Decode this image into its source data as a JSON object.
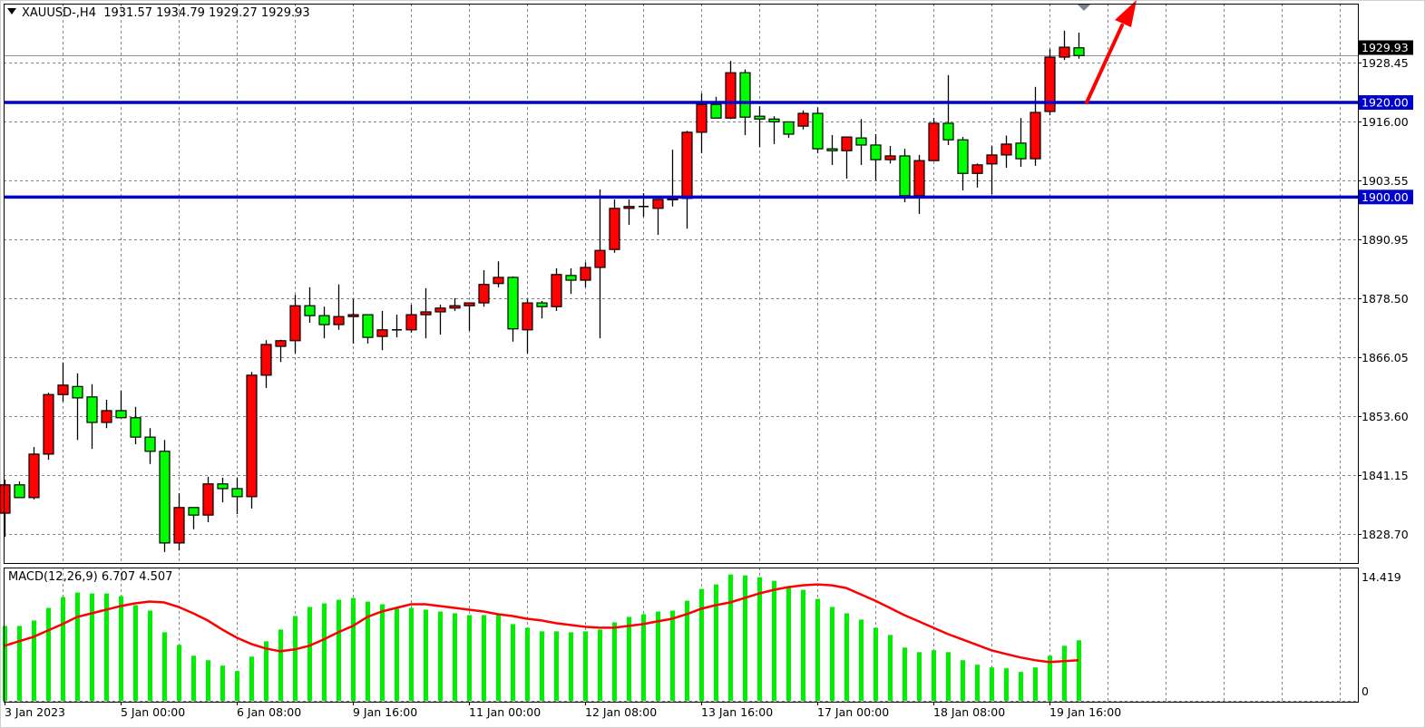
{
  "header": {
    "symbol": "XAUUSD-,H4",
    "ohlc": "1931.57 1934.79 1929.27 1929.93"
  },
  "macd_header": {
    "label": "MACD(12,26,9)",
    "values": "6.707 4.507"
  },
  "colors": {
    "bull_candle": "#ff0000",
    "bear_candle": "#00ff00",
    "level_line": "#0000cc",
    "histogram": "#00ee00",
    "signal_line": "#ff0000",
    "arrow": "#ff0000",
    "bid_label_bg": "#000000"
  },
  "chart_data": [
    {
      "type": "candlestick",
      "ylim": [
        1822,
        1938
      ],
      "grid": true,
      "y_ticks": [
        "1828.70",
        "1841.15",
        "1853.60",
        "1866.05",
        "1878.50",
        "1890.95",
        "1903.55",
        "1916.00",
        "1928.45"
      ],
      "x_tick_labels": [
        "3 Jan 2023",
        "5 Jan 00:00",
        "6 Jan 08:00",
        "9 Jan 16:00",
        "11 Jan 00:00",
        "12 Jan 08:00",
        "13 Jan 16:00",
        "17 Jan 00:00",
        "18 Jan 08:00",
        "19 Jan 16:00"
      ],
      "current_price": "1929.93",
      "horizontal_levels": [
        {
          "value": 1920.0,
          "label": "1920.00"
        },
        {
          "value": 1900.0,
          "label": "1900.00"
        }
      ],
      "annotation": "red up arrow",
      "ohlc_columns": [
        "open",
        "high",
        "low",
        "close"
      ],
      "candles": [
        [
          1833.1,
          1840.2,
          1828.1,
          1839.1
        ],
        [
          1839.1,
          1839.8,
          1836.4,
          1836.4
        ],
        [
          1836.4,
          1847.1,
          1836.0,
          1845.6
        ],
        [
          1845.6,
          1858.6,
          1844.4,
          1858.2
        ],
        [
          1858.2,
          1865.0,
          1856.7,
          1860.2
        ],
        [
          1859.9,
          1862.7,
          1848.6,
          1857.5
        ],
        [
          1857.7,
          1860.4,
          1846.7,
          1852.3
        ],
        [
          1852.3,
          1857.1,
          1851.1,
          1854.8
        ],
        [
          1854.8,
          1859.0,
          1853.3,
          1853.3
        ],
        [
          1853.3,
          1855.6,
          1847.7,
          1849.2
        ],
        [
          1849.2,
          1851.1,
          1843.5,
          1846.2
        ],
        [
          1846.2,
          1848.6,
          1824.9,
          1826.8
        ],
        [
          1826.8,
          1837.3,
          1825.2,
          1834.3
        ],
        [
          1834.3,
          1834.3,
          1829.7,
          1832.7
        ],
        [
          1832.7,
          1840.8,
          1831.2,
          1839.3
        ],
        [
          1839.3,
          1840.6,
          1835.4,
          1838.3
        ],
        [
          1838.3,
          1840.6,
          1832.9,
          1836.6
        ],
        [
          1836.6,
          1863.0,
          1834.1,
          1862.3
        ],
        [
          1862.3,
          1869.7,
          1859.6,
          1868.8
        ],
        [
          1868.4,
          1869.8,
          1865.1,
          1869.6
        ],
        [
          1869.6,
          1879.3,
          1866.9,
          1877.0
        ],
        [
          1877.0,
          1880.9,
          1873.4,
          1874.9
        ],
        [
          1874.9,
          1876.8,
          1870.1,
          1873.0
        ],
        [
          1873.0,
          1881.5,
          1871.9,
          1874.7
        ],
        [
          1874.7,
          1878.4,
          1869.0,
          1875.1
        ],
        [
          1875.1,
          1875.1,
          1869.0,
          1870.3
        ],
        [
          1870.5,
          1875.9,
          1867.6,
          1871.9
        ],
        [
          1871.9,
          1875.1,
          1870.3,
          1871.9
        ],
        [
          1871.9,
          1877.2,
          1871.3,
          1875.1
        ],
        [
          1875.1,
          1880.7,
          1870.1,
          1875.7
        ],
        [
          1875.7,
          1877.2,
          1870.9,
          1876.5
        ],
        [
          1876.5,
          1878.6,
          1875.9,
          1877.0
        ],
        [
          1877.0,
          1877.6,
          1871.7,
          1877.6
        ],
        [
          1877.6,
          1884.5,
          1876.8,
          1881.5
        ],
        [
          1881.7,
          1886.4,
          1880.9,
          1883.0
        ],
        [
          1883.0,
          1883.2,
          1869.4,
          1872.1
        ],
        [
          1871.9,
          1878.4,
          1866.9,
          1877.6
        ],
        [
          1877.6,
          1878.0,
          1874.3,
          1876.8
        ],
        [
          1876.8,
          1884.9,
          1875.9,
          1883.6
        ],
        [
          1883.4,
          1884.9,
          1879.5,
          1882.4
        ],
        [
          1882.4,
          1886.2,
          1880.9,
          1885.1
        ],
        [
          1885.1,
          1901.6,
          1870.1,
          1888.7
        ],
        [
          1888.9,
          1899.5,
          1888.2,
          1897.6
        ],
        [
          1897.6,
          1899.5,
          1894.1,
          1898.0
        ],
        [
          1898.0,
          1900.8,
          1895.8,
          1898.0
        ],
        [
          1897.6,
          1899.5,
          1892.0,
          1899.5
        ],
        [
          1899.5,
          1910.0,
          1898.0,
          1899.7
        ],
        [
          1899.7,
          1914.0,
          1893.3,
          1913.7
        ],
        [
          1913.7,
          1921.9,
          1909.3,
          1919.6
        ],
        [
          1919.6,
          1921.2,
          1916.7,
          1916.7
        ],
        [
          1916.7,
          1928.8,
          1916.5,
          1926.3
        ],
        [
          1926.3,
          1927.0,
          1913.1,
          1916.9
        ],
        [
          1917.1,
          1919.2,
          1910.6,
          1916.5
        ],
        [
          1916.5,
          1917.1,
          1911.2,
          1915.9
        ],
        [
          1915.9,
          1915.9,
          1912.5,
          1913.3
        ],
        [
          1915.0,
          1918.3,
          1914.3,
          1917.7
        ],
        [
          1917.7,
          1919.0,
          1909.3,
          1910.2
        ],
        [
          1910.2,
          1913.1,
          1906.8,
          1909.8
        ],
        [
          1909.8,
          1912.7,
          1903.9,
          1912.7
        ],
        [
          1912.5,
          1916.5,
          1906.8,
          1911.0
        ],
        [
          1911.0,
          1913.3,
          1903.5,
          1907.9
        ],
        [
          1907.9,
          1910.8,
          1907.1,
          1908.7
        ],
        [
          1908.7,
          1910.2,
          1898.9,
          1900.3
        ],
        [
          1900.3,
          1908.9,
          1896.4,
          1907.7
        ],
        [
          1907.7,
          1916.7,
          1907.7,
          1915.6
        ],
        [
          1915.6,
          1925.8,
          1911.0,
          1912.1
        ],
        [
          1912.1,
          1912.7,
          1901.4,
          1905.0
        ],
        [
          1905.0,
          1907.1,
          1902.0,
          1906.8
        ],
        [
          1907.0,
          1910.8,
          1900.6,
          1908.9
        ],
        [
          1908.9,
          1913.0,
          1906.2,
          1911.2
        ],
        [
          1911.4,
          1916.7,
          1906.4,
          1908.1
        ],
        [
          1908.1,
          1923.3,
          1906.6,
          1917.9
        ],
        [
          1918.1,
          1931.3,
          1917.3,
          1929.6
        ],
        [
          1929.6,
          1935.2,
          1929.0,
          1931.7
        ],
        [
          1931.57,
          1934.79,
          1929.27,
          1929.93
        ]
      ]
    },
    {
      "type": "bar",
      "ylim": [
        0,
        14.419
      ],
      "y_ticks": [
        "14.419",
        "0"
      ],
      "series": [
        {
          "kind": "histogram",
          "values": [
            8.3,
            8.3,
            8.9,
            10.3,
            11.5,
            12.0,
            11.9,
            11.9,
            11.6,
            10.6,
            10.0,
            7.6,
            6.2,
            5.0,
            4.5,
            3.9,
            3.3,
            4.9,
            6.6,
            7.9,
            9.4,
            10.4,
            10.8,
            11.2,
            11.4,
            11.0,
            10.7,
            10.2,
            10.3,
            10.1,
            9.9,
            9.7,
            9.5,
            9.5,
            9.5,
            8.5,
            8.1,
            7.7,
            7.7,
            7.6,
            7.7,
            7.9,
            8.7,
            9.3,
            9.6,
            9.9,
            10.0,
            11.1,
            12.4,
            12.9,
            14.0,
            13.9,
            13.7,
            13.3,
            12.6,
            12.3,
            11.3,
            10.4,
            9.7,
            9.0,
            8.1,
            7.3,
            5.9,
            5.4,
            5.6,
            5.4,
            4.5,
            4.0,
            3.7,
            3.6,
            3.2,
            3.7,
            5.0,
            6.1,
            6.707
          ]
        },
        {
          "kind": "line",
          "values": [
            6.1,
            6.6,
            7.1,
            7.8,
            8.5,
            9.3,
            9.7,
            10.1,
            10.5,
            10.8,
            11.0,
            10.9,
            10.4,
            9.7,
            8.9,
            7.9,
            7.0,
            6.3,
            5.8,
            5.5,
            5.7,
            6.1,
            6.8,
            7.6,
            8.3,
            9.3,
            9.9,
            10.3,
            10.7,
            10.7,
            10.5,
            10.3,
            10.1,
            9.9,
            9.6,
            9.4,
            9.1,
            8.9,
            8.6,
            8.4,
            8.2,
            8.1,
            8.1,
            8.3,
            8.5,
            8.8,
            9.1,
            9.6,
            10.2,
            10.6,
            10.9,
            11.4,
            11.9,
            12.3,
            12.6,
            12.8,
            12.9,
            12.8,
            12.5,
            11.8,
            11.1,
            10.3,
            9.5,
            8.8,
            8.1,
            7.4,
            6.8,
            6.2,
            5.6,
            5.2,
            4.8,
            4.5,
            4.3,
            4.4,
            4.507
          ]
        }
      ]
    }
  ]
}
